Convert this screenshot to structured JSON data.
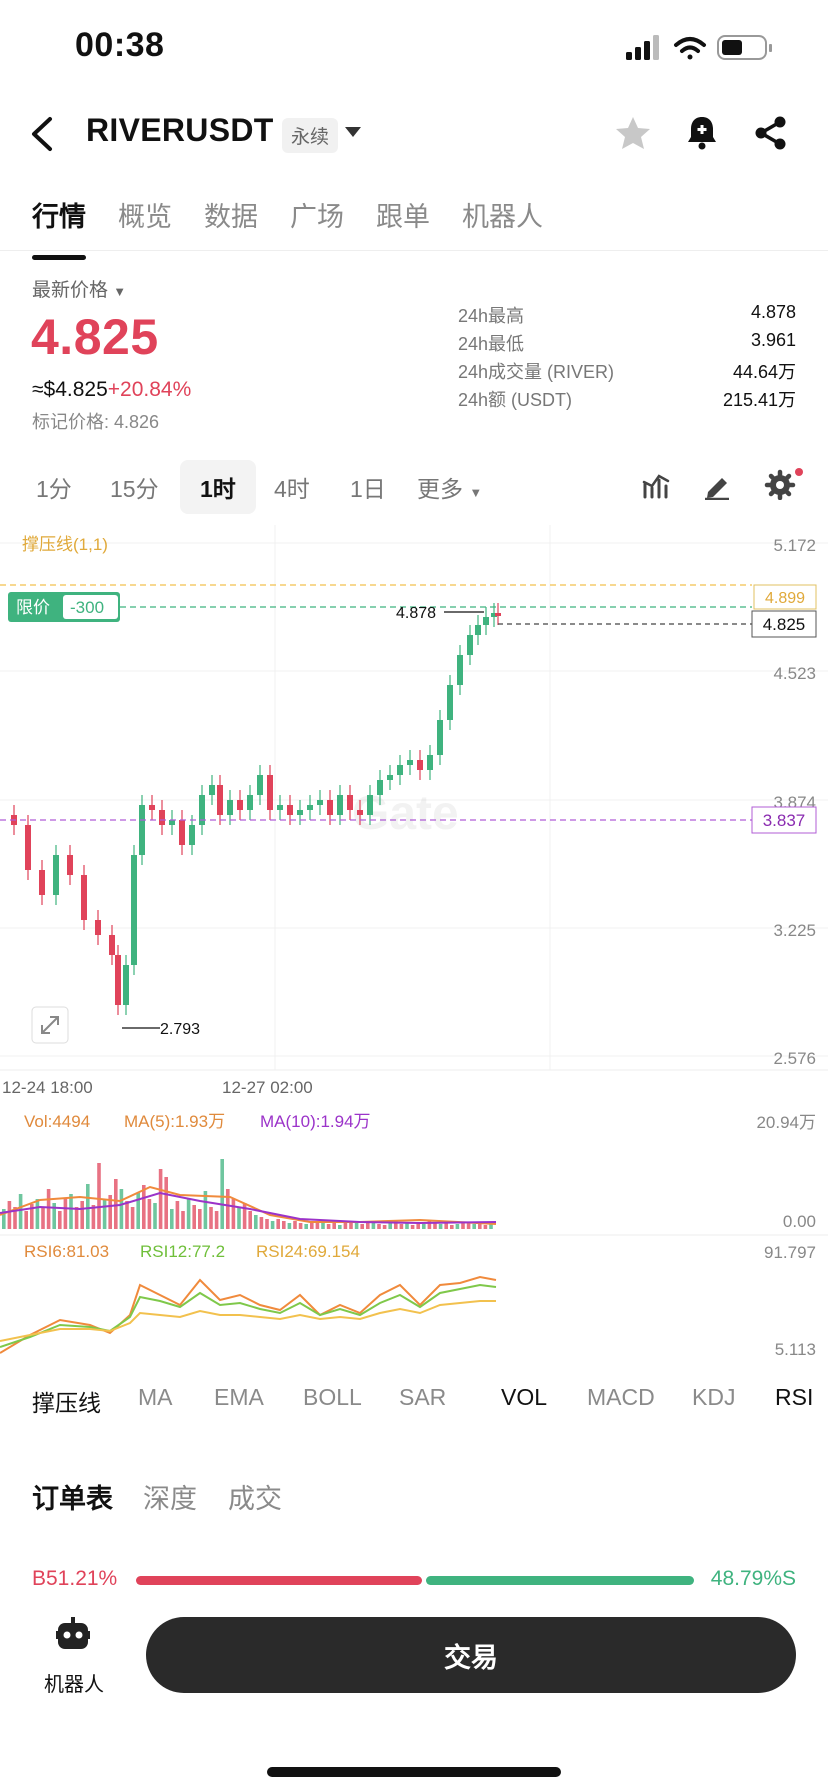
{
  "status": {
    "time": "00:38"
  },
  "header": {
    "title": "RIVERUSDT",
    "tag": "永续"
  },
  "tabs": [
    "行情",
    "概览",
    "数据",
    "广场",
    "跟单",
    "机器人"
  ],
  "price": {
    "label": "最新价格",
    "last": "4.825",
    "usd": "≈$4.825",
    "change": "+20.84%",
    "mark": "标记价格: 4.826"
  },
  "stats": [
    {
      "k": "24h最高",
      "v": "4.878"
    },
    {
      "k": "24h最低",
      "v": "3.961"
    },
    {
      "k": "24h成交量 (RIVER)",
      "v": "44.64万"
    },
    {
      "k": "24h额 (USDT)",
      "v": "215.41万"
    }
  ],
  "timeframes": [
    "1分",
    "15分",
    "1时",
    "4时",
    "1日",
    "更多"
  ],
  "chart": {
    "indicator_label": "撑压线(1,1)",
    "limit_label": "限价",
    "limit_qty": "-300",
    "high_label": "4.878",
    "low_label": "2.793",
    "price_axis": [
      "5.172",
      "4.523",
      "3.874",
      "3.225",
      "2.576"
    ],
    "resist_tag": "4.899",
    "current_tag": "4.825",
    "support_tag": "3.837",
    "time_axis": [
      "12-24 18:00",
      "12-27 02:00"
    ],
    "vol": {
      "vol": "Vol:4494",
      "ma5": "MA(5):1.93万",
      "ma10": "MA(10):1.94万",
      "axis_top": "20.94万",
      "axis_bottom": "0.00"
    },
    "rsi": {
      "rsi6": "RSI6:81.03",
      "rsi12": "RSI12:77.2",
      "rsi24": "RSI24:69.154",
      "axis_top": "91.797",
      "axis_bottom": "5.113"
    },
    "colors": {
      "up": "#3fb37f",
      "down": "#e0435a",
      "resist": "#f2c14e",
      "limit": "#3fb37f",
      "support": "#b05cd6",
      "ma5": "#f08a3c",
      "ma10": "#9b33c9"
    }
  },
  "indicators": [
    "撑压线",
    "MA",
    "EMA",
    "BOLL",
    "SAR",
    "VOL",
    "MACD",
    "KDJ",
    "RSI"
  ],
  "order_tabs": [
    "订单表",
    "深度",
    "成交"
  ],
  "bs": {
    "b": "B51.21%",
    "s": "48.79%S",
    "b_ratio": 0.5121
  },
  "bottom": {
    "robot": "机器人",
    "trade": "交易"
  }
}
